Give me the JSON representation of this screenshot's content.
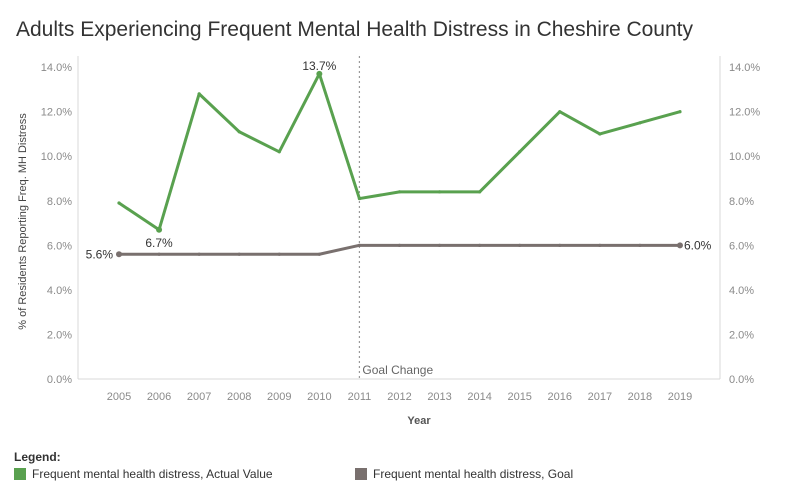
{
  "title": "Adults Experiencing Frequent Mental Health Distress in Cheshire County",
  "chart_data": {
    "type": "line",
    "xlabel": "Year",
    "ylabel": "% of Residents Reporting Freq. MH Distress",
    "x": [
      2005,
      2006,
      2007,
      2008,
      2009,
      2010,
      2011,
      2012,
      2013,
      2014,
      2015,
      2016,
      2017,
      2018,
      2019
    ],
    "ylim": [
      0,
      14.5
    ],
    "yticks": [
      "0.0%",
      "2.0%",
      "4.0%",
      "6.0%",
      "8.0%",
      "10.0%",
      "12.0%",
      "14.0%"
    ],
    "ytick_values": [
      0,
      2,
      4,
      6,
      8,
      10,
      12,
      14
    ],
    "grid": false,
    "series": [
      {
        "name": "Frequent mental health distress, Actual Value",
        "color": "#59a14f",
        "values": [
          7.9,
          6.7,
          12.8,
          11.1,
          10.2,
          13.7,
          8.1,
          8.4,
          8.4,
          8.4,
          10.2,
          12.0,
          11.0,
          11.5,
          12.0
        ]
      },
      {
        "name": "Frequent mental health distress, Goal",
        "color": "#79706e",
        "values": [
          5.6,
          5.6,
          5.6,
          5.6,
          5.6,
          5.6,
          6.0,
          6.0,
          6.0,
          6.0,
          6.0,
          6.0,
          6.0,
          6.0,
          6.0
        ]
      }
    ],
    "data_labels": [
      {
        "series": 0,
        "x": 2006,
        "text": "6.7%"
      },
      {
        "series": 0,
        "x": 2010,
        "text": "13.7%"
      },
      {
        "series": 1,
        "x": 2005,
        "text": "5.6%"
      },
      {
        "series": 1,
        "x": 2019,
        "text": "6.0%"
      }
    ],
    "reference_line": {
      "x": 2011,
      "label": "Goal Change"
    }
  },
  "legend": {
    "title": "Legend:",
    "items": [
      {
        "label": "Frequent mental health distress, Actual Value",
        "color": "#59a14f"
      },
      {
        "label": "Frequent mental health distress, Goal",
        "color": "#79706e"
      }
    ]
  }
}
